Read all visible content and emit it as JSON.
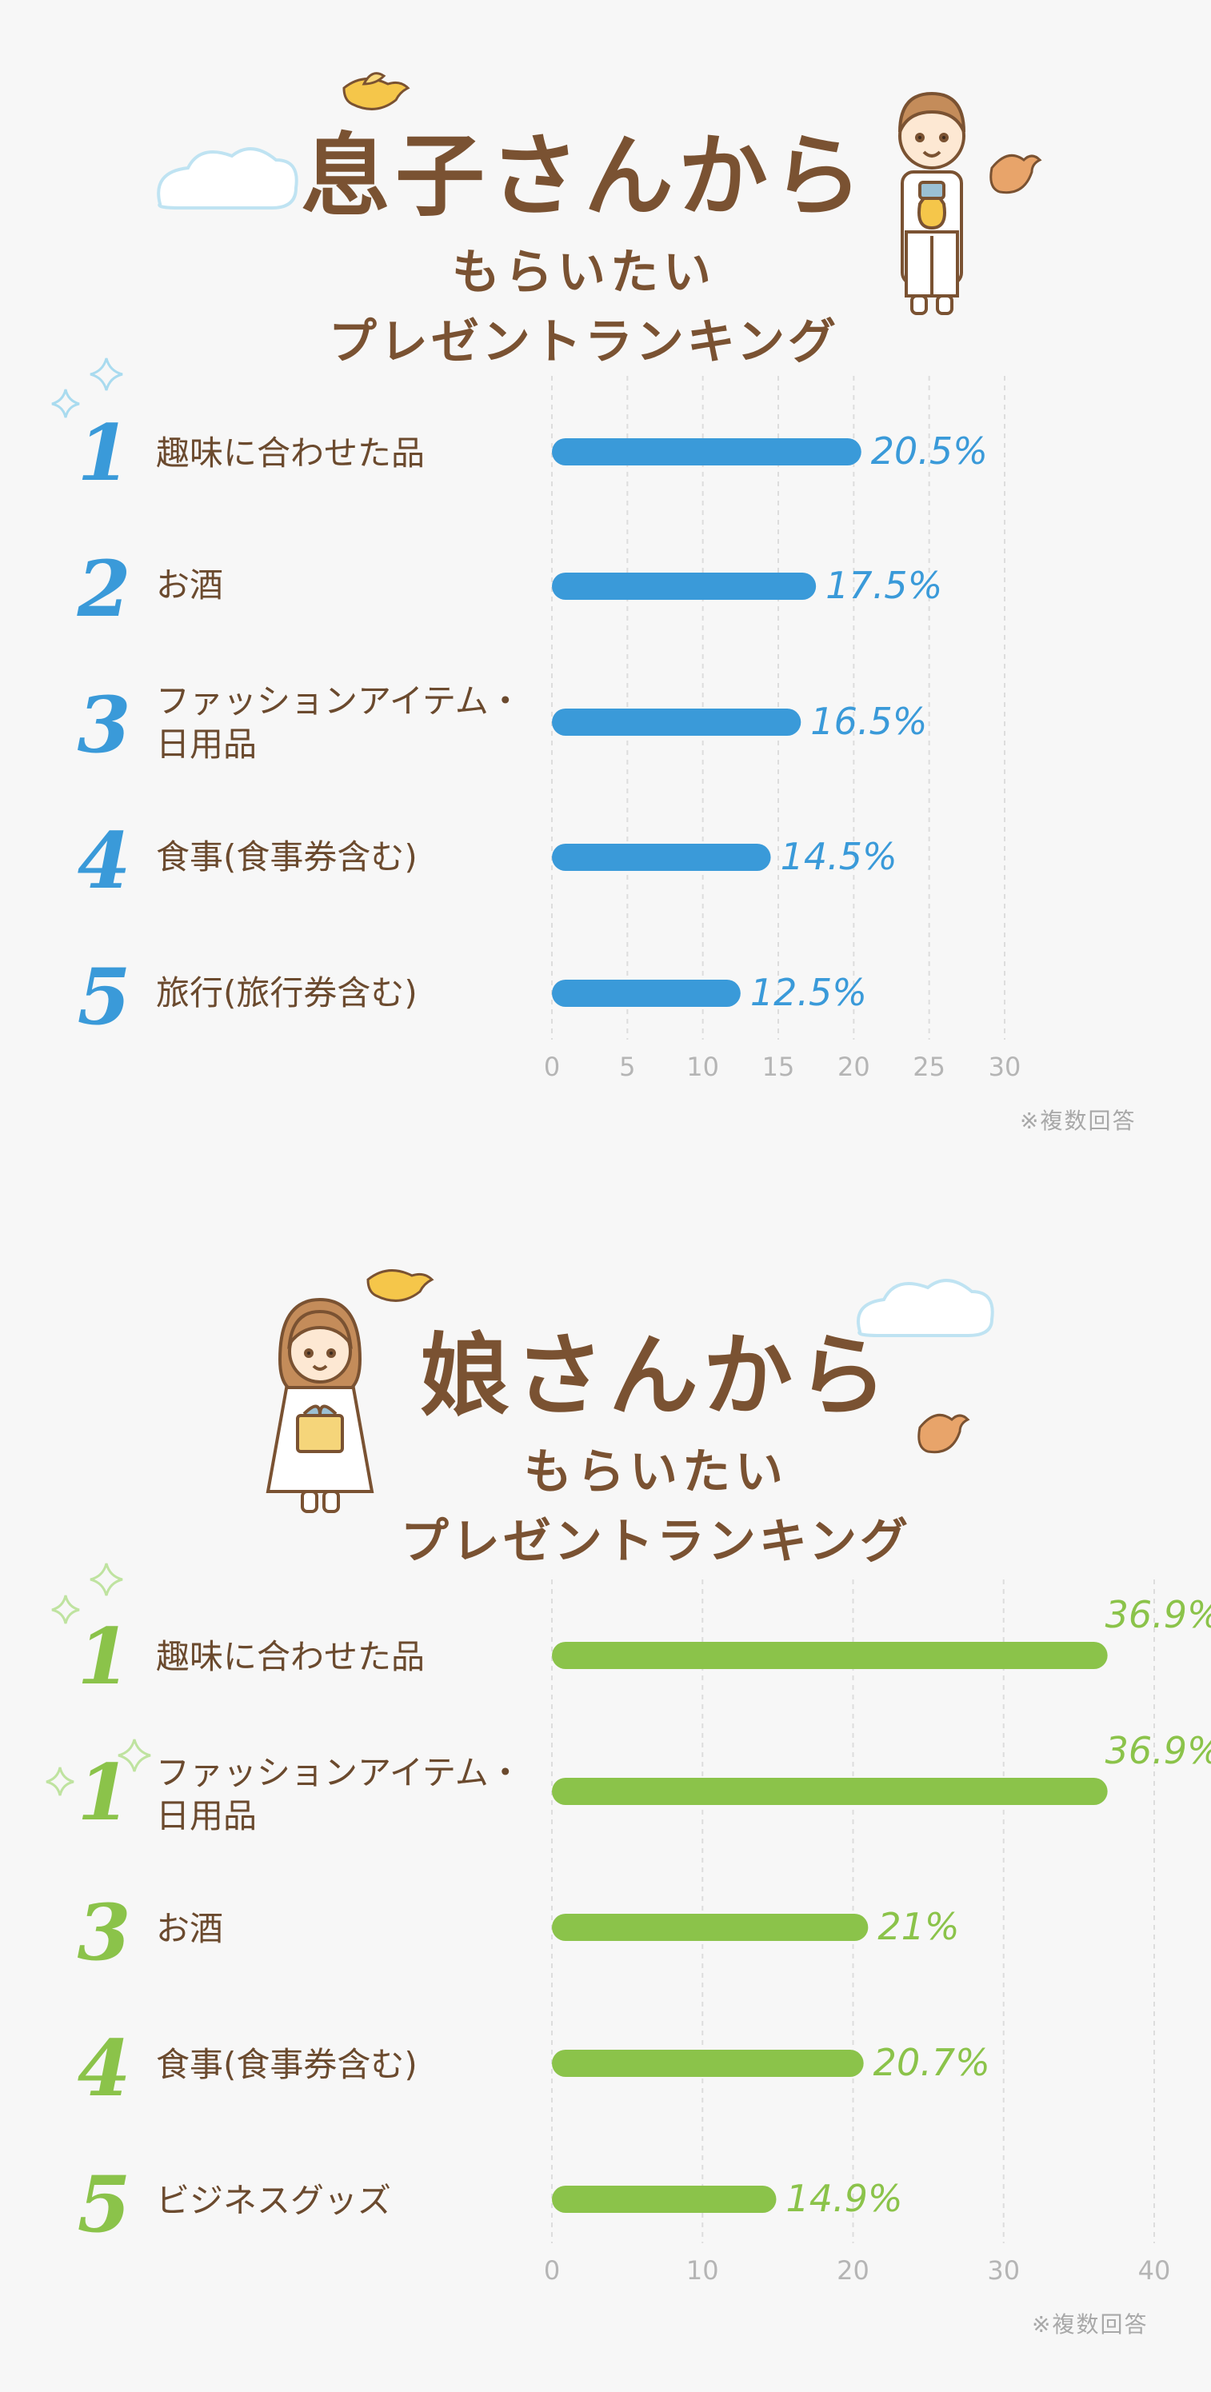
{
  "sections": [
    {
      "id": "son",
      "title": {
        "line1": "息子さんから",
        "line2": "もらいたい",
        "line3": "プレゼントランキング"
      },
      "note": "※複数回答",
      "color": "#3a9ad9",
      "chart_data": {
        "type": "bar",
        "orientation": "horizontal",
        "categories": [
          "趣味に合わせた品",
          "お酒",
          "ファッションアイテム・日用品",
          "食事(食事券含む)",
          "旅行(旅行券含む)"
        ],
        "ranks": [
          "1",
          "2",
          "3",
          "4",
          "5"
        ],
        "values": [
          20.5,
          17.5,
          16.5,
          14.5,
          12.5
        ],
        "value_labels": [
          "20.5%",
          "17.5%",
          "16.5%",
          "14.5%",
          "12.5%"
        ],
        "xlim": [
          0,
          30
        ],
        "xticks": [
          "0",
          "5",
          "10",
          "15",
          "20",
          "25",
          "30"
        ],
        "grid": true
      }
    },
    {
      "id": "daughter",
      "title": {
        "line1": "娘さんから",
        "line2": "もらいたい",
        "line3": "プレゼントランキング"
      },
      "note": "※複数回答",
      "color": "#8bc34a",
      "chart_data": {
        "type": "bar",
        "orientation": "horizontal",
        "categories": [
          "趣味に合わせた品",
          "ファッションアイテム・日用品",
          "お酒",
          "食事(食事券含む)",
          "ビジネスグッズ"
        ],
        "ranks": [
          "1",
          "1",
          "3",
          "4",
          "5"
        ],
        "values": [
          36.9,
          36.9,
          21,
          20.7,
          14.9
        ],
        "value_labels": [
          "36.9%",
          "36.9%",
          "21%",
          "20.7%",
          "14.9%"
        ],
        "xlim": [
          0,
          40
        ],
        "xticks": [
          "0",
          "10",
          "20",
          "30",
          "40"
        ],
        "grid": true
      }
    }
  ]
}
